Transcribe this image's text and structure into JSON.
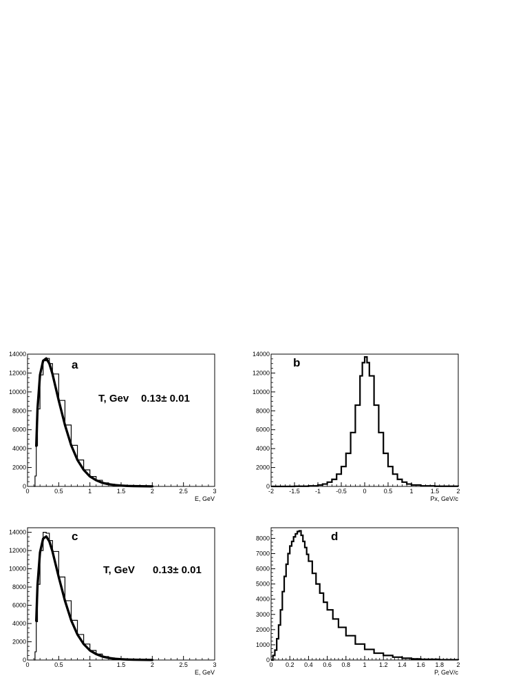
{
  "chart_data": [
    {
      "type": "histogram",
      "panel_label": "a",
      "xlabel": "E, GeV",
      "ylabel": "",
      "xlim": [
        0,
        3
      ],
      "ylim": [
        0,
        14000
      ],
      "xticks": [
        0,
        0.5,
        1,
        1.5,
        2,
        2.5,
        3
      ],
      "yticks": [
        0,
        2000,
        4000,
        6000,
        8000,
        10000,
        12000,
        14000
      ],
      "annotation": {
        "label": "T, Gev",
        "value": "0.13± 0.01"
      },
      "histogram": {
        "x": [
          0.1,
          0.12,
          0.14,
          0.16,
          0.2,
          0.25,
          0.3,
          0.35,
          0.4,
          0.5,
          0.6,
          0.7,
          0.8,
          0.9,
          1.0,
          1.1,
          1.2,
          1.3,
          1.4,
          1.5,
          1.6,
          1.7,
          1.8,
          1.9,
          2.0
        ],
        "y": [
          0,
          1100,
          4300,
          8200,
          11800,
          13300,
          13550,
          13000,
          11900,
          9100,
          6500,
          4350,
          2800,
          1750,
          1050,
          650,
          380,
          230,
          140,
          85,
          50,
          30,
          20,
          12,
          0
        ]
      },
      "fit": {
        "x": [
          0.14,
          0.16,
          0.2,
          0.25,
          0.3,
          0.35,
          0.4,
          0.5,
          0.6,
          0.7,
          0.8,
          0.9,
          1.0,
          1.1,
          1.2,
          1.3,
          1.4,
          1.5,
          1.6,
          1.7,
          1.8,
          1.9,
          2.0
        ],
        "y": [
          4300,
          8200,
          11800,
          13300,
          13550,
          13000,
          11900,
          9100,
          6500,
          4350,
          2800,
          1750,
          1050,
          650,
          380,
          230,
          140,
          85,
          50,
          30,
          20,
          12,
          8
        ]
      }
    },
    {
      "type": "histogram",
      "panel_label": "b",
      "xlabel": "Px, GeV/c",
      "ylabel": "",
      "xlim": [
        -2,
        2
      ],
      "ylim": [
        0,
        14000
      ],
      "xticks": [
        -2,
        -1.5,
        -1,
        -0.5,
        0,
        0.5,
        1,
        1.5,
        2
      ],
      "yticks": [
        0,
        2000,
        4000,
        6000,
        8000,
        10000,
        12000,
        14000
      ],
      "histogram": {
        "x": [
          -2.0,
          -1.5,
          -1.2,
          -1.0,
          -0.9,
          -0.8,
          -0.7,
          -0.6,
          -0.5,
          -0.4,
          -0.3,
          -0.2,
          -0.1,
          -0.05,
          0.0,
          0.05,
          0.1,
          0.2,
          0.3,
          0.4,
          0.5,
          0.6,
          0.7,
          0.8,
          0.9,
          1.0,
          1.2,
          1.5,
          2.0
        ],
        "y": [
          0,
          20,
          60,
          150,
          250,
          450,
          750,
          1300,
          2100,
          3500,
          5700,
          8600,
          11700,
          13100,
          13700,
          13100,
          11700,
          8600,
          5700,
          3500,
          2100,
          1300,
          750,
          450,
          250,
          150,
          60,
          20,
          0
        ]
      }
    },
    {
      "type": "histogram",
      "panel_label": "c",
      "xlabel": "E, GeV",
      "ylabel": "",
      "xlim": [
        0,
        3
      ],
      "ylim": [
        0,
        14500
      ],
      "xticks": [
        0,
        0.5,
        1,
        1.5,
        2,
        2.5,
        3
      ],
      "yticks": [
        0,
        2000,
        4000,
        6000,
        8000,
        10000,
        12000,
        14000
      ],
      "annotation": {
        "label": "T, GeV",
        "value": "0.13± 0.01"
      },
      "histogram": {
        "x": [
          0.1,
          0.12,
          0.14,
          0.16,
          0.2,
          0.25,
          0.3,
          0.35,
          0.4,
          0.5,
          0.6,
          0.7,
          0.8,
          0.9,
          1.0,
          1.1,
          1.2,
          1.3,
          1.4,
          1.5,
          1.6,
          1.7,
          1.8,
          1.9,
          2.0
        ],
        "y": [
          0,
          900,
          4200,
          8300,
          12000,
          14000,
          13900,
          13100,
          11900,
          9100,
          6500,
          4350,
          2800,
          1750,
          1050,
          650,
          380,
          230,
          140,
          85,
          50,
          30,
          20,
          12,
          0
        ]
      },
      "fit": {
        "x": [
          0.14,
          0.16,
          0.2,
          0.25,
          0.3,
          0.35,
          0.4,
          0.5,
          0.6,
          0.7,
          0.8,
          0.9,
          1.0,
          1.1,
          1.2,
          1.3,
          1.4,
          1.5,
          1.6,
          1.7,
          1.8,
          1.9,
          2.0
        ],
        "y": [
          4300,
          8200,
          11800,
          13300,
          13550,
          13000,
          11900,
          9100,
          6500,
          4350,
          2800,
          1750,
          1050,
          650,
          380,
          230,
          140,
          85,
          50,
          30,
          20,
          12,
          8
        ]
      }
    },
    {
      "type": "histogram",
      "panel_label": "d",
      "xlabel": "P, GeV/c",
      "ylabel": "",
      "xlim": [
        0,
        2
      ],
      "ylim": [
        0,
        8700
      ],
      "xticks": [
        0,
        0.2,
        0.4,
        0.6,
        0.8,
        1,
        1.2,
        1.4,
        1.6,
        1.8,
        2
      ],
      "yticks": [
        0,
        1000,
        2000,
        3000,
        4000,
        5000,
        6000,
        7000,
        8000
      ],
      "histogram": {
        "x": [
          0.0,
          0.02,
          0.04,
          0.06,
          0.08,
          0.1,
          0.12,
          0.14,
          0.16,
          0.18,
          0.2,
          0.22,
          0.24,
          0.26,
          0.28,
          0.3,
          0.32,
          0.34,
          0.36,
          0.38,
          0.4,
          0.44,
          0.48,
          0.52,
          0.56,
          0.6,
          0.66,
          0.72,
          0.8,
          0.9,
          1.0,
          1.1,
          1.2,
          1.3,
          1.4,
          1.5,
          1.6,
          1.8,
          2.0
        ],
        "y": [
          0,
          300,
          650,
          1400,
          2300,
          3300,
          4500,
          5500,
          6300,
          7000,
          7500,
          7800,
          8100,
          8300,
          8450,
          8500,
          8200,
          7800,
          7400,
          6950,
          6500,
          5700,
          5000,
          4400,
          3800,
          3300,
          2700,
          2150,
          1600,
          1050,
          700,
          450,
          300,
          190,
          120,
          75,
          45,
          20,
          0
        ]
      }
    }
  ]
}
